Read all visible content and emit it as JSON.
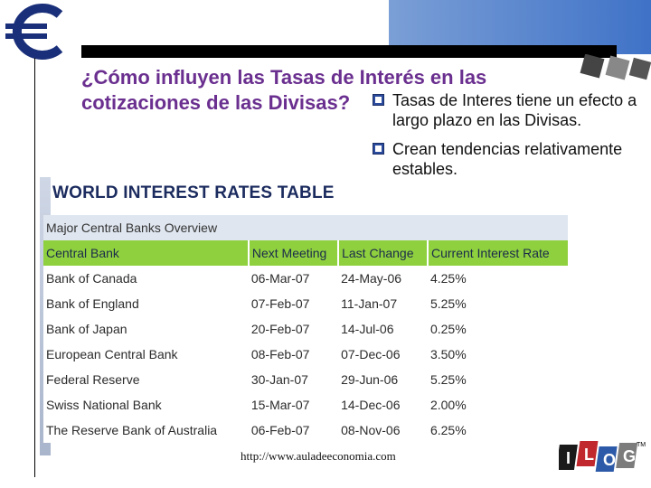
{
  "slide": {
    "title_lines": [
      "¿Cómo influyen las Tasas de Interés en las",
      "cotizaciones de las Divisas?"
    ],
    "bullets": [
      "Tasas de Interes tiene un efecto a largo plazo en las Divisas.",
      "Crean tendencias relativamente estables."
    ],
    "logo_icon": "euro-sign-icon",
    "footer_url": "http://www.auladeeconomia.com",
    "brand_logo": "ILOG"
  },
  "table": {
    "title": "WORLD INTEREST RATES TABLE",
    "caption": "Major Central Banks Overview",
    "headers": [
      "Central Bank",
      "Next Meeting",
      "Last Change",
      "Current Interest Rate"
    ],
    "rows": [
      [
        "Bank of Canada",
        "06-Mar-07",
        "24-May-06",
        "4.25%"
      ],
      [
        "Bank of England",
        "07-Feb-07",
        "11-Jan-07",
        "5.25%"
      ],
      [
        "Bank of Japan",
        "20-Feb-07",
        "14-Jul-06",
        "0.25%"
      ],
      [
        "European Central Bank",
        "08-Feb-07",
        "07-Dec-06",
        "3.50%"
      ],
      [
        "Federal Reserve",
        "30-Jan-07",
        "29-Jun-06",
        "5.25%"
      ],
      [
        "Swiss National Bank",
        "15-Mar-07",
        "14-Dec-06",
        "2.00%"
      ],
      [
        "The Reserve Bank of Australia",
        "06-Feb-07",
        "08-Nov-06",
        "6.25%"
      ]
    ],
    "colors": {
      "header_bg": "#8fd03f",
      "caption_bg": "#dfe6ef",
      "title_color": "#1b2b5e"
    }
  }
}
